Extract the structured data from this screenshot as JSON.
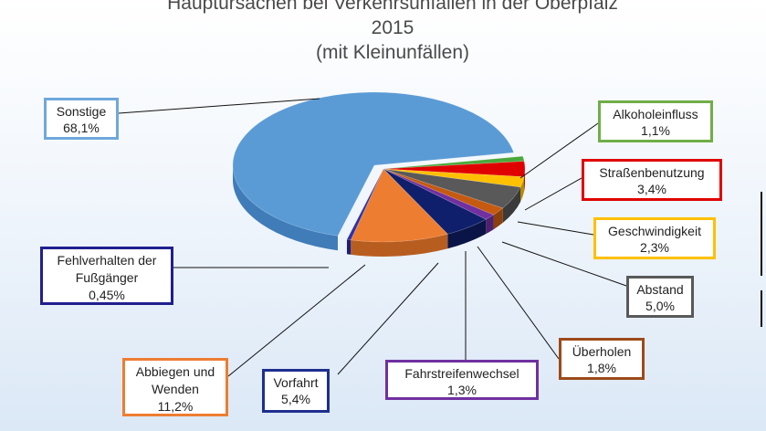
{
  "chart_data": {
    "type": "pie",
    "title": "Hauptursachen bei Verkehrsunfällen in der Oberpfalz",
    "title_line2": "2015",
    "subtitle": "(mit Kleinunfällen)",
    "slices": [
      {
        "label": "Sonstige",
        "value_text": "68,1%",
        "value": 68.1,
        "color": "#5b9bd5",
        "side": "#3f7cb8",
        "border": "#6fa8dc"
      },
      {
        "label": "Fehlverhalten der Fußgänger",
        "value_text": "0,45%",
        "value": 0.45,
        "color": "#2f2fa8",
        "side": "#1e1e7a",
        "border": "#1f1f8f"
      },
      {
        "label": "Abbiegen und Wenden",
        "value_text": "11,2%",
        "value": 11.2,
        "color": "#ed7d31",
        "side": "#b85d20",
        "border": "#ed7d31"
      },
      {
        "label": "Vorfahrt",
        "value_text": "5,4%",
        "value": 5.4,
        "color": "#0f1f6b",
        "side": "#0a1446",
        "border": "#1f2f8f"
      },
      {
        "label": "Fahrstreifenwechsel",
        "value_text": "1,3%",
        "value": 1.3,
        "color": "#7030a0",
        "side": "#4e2070",
        "border": "#7030a0"
      },
      {
        "label": "Überholen",
        "value_text": "1,8%",
        "value": 1.8,
        "color": "#c55a11",
        "side": "#8a3f0c",
        "border": "#9c4a1a"
      },
      {
        "label": "Abstand",
        "value_text": "5,0%",
        "value": 5.0,
        "color": "#595959",
        "side": "#3a3a3a",
        "border": "#595959"
      },
      {
        "label": "Geschwindigkeit",
        "value_text": "2,3%",
        "value": 2.3,
        "color": "#ffc000",
        "side": "#b88a00",
        "border": "#ffc000"
      },
      {
        "label": "Straßenbenutzung",
        "value_text": "3,4%",
        "value": 3.4,
        "color": "#e00000",
        "side": "#9a0000",
        "border": "#e00000"
      },
      {
        "label": "Alkoholeinfluss",
        "value_text": "1,1%",
        "value": 1.1,
        "color": "#4aa83a",
        "side": "#2f7326",
        "border": "#70ad47"
      }
    ]
  }
}
